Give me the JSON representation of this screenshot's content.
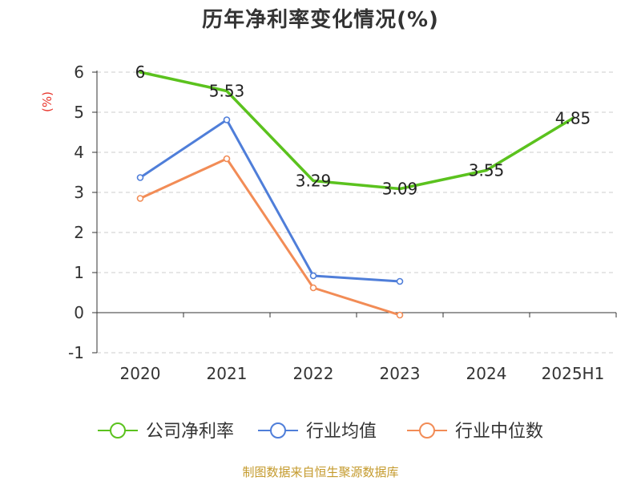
{
  "title": "历年净利率变化情况(%)",
  "source": "制图数据来自恒生聚源数据库",
  "colors": {
    "company": "#5bc21e",
    "industry_avg": "#4f7ed9",
    "industry_median": "#f28c56",
    "ylabel": "#e8342b",
    "source": "#c49a2c",
    "grid": "#cccccc",
    "axis": "#333333"
  },
  "chart_data": {
    "type": "line",
    "title": "历年净利率变化情况(%)",
    "ylabel": "(%)",
    "xlabel": "",
    "categories": [
      "2020",
      "2021",
      "2022",
      "2023",
      "2024",
      "2025H1"
    ],
    "ylim": [
      -1,
      6
    ],
    "yticks": [
      6,
      5,
      4,
      3,
      2,
      1,
      0,
      -1
    ],
    "grid": true,
    "legend_position": "bottom",
    "series": [
      {
        "name": "公司净利率",
        "values": [
          6,
          5.53,
          3.29,
          3.09,
          3.55,
          4.85
        ],
        "labels": [
          "6",
          "5.53",
          "3.29",
          "3.09",
          "3.55",
          "4.85"
        ],
        "color": "#5bc21e"
      },
      {
        "name": "行业均值",
        "values": [
          3.37,
          4.81,
          0.92,
          0.78,
          null,
          null
        ],
        "color": "#4f7ed9"
      },
      {
        "name": "行业中位数",
        "values": [
          2.85,
          3.84,
          0.62,
          -0.06,
          null,
          null
        ],
        "color": "#f28c56"
      }
    ]
  }
}
